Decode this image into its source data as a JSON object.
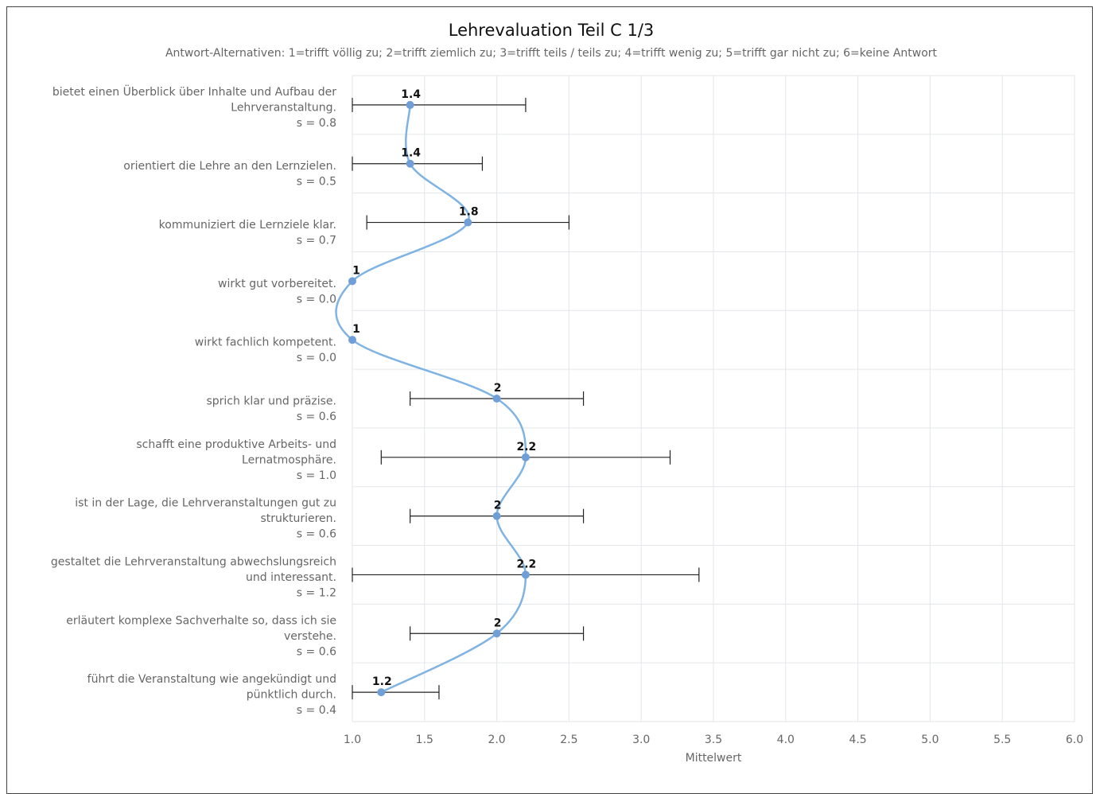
{
  "chart_data": {
    "type": "line",
    "title": "Lehrevaluation Teil C 1/3",
    "subtitle": "Antwort-Alternativen: 1=trifft völlig zu; 2=trifft ziemlich zu; 3=trifft teils / teils zu; 4=trifft wenig zu; 5=trifft gar nicht zu; 6=keine Antwort",
    "xlabel": "Mittelwert",
    "ylabel": "",
    "xlim": [
      1.0,
      6.0
    ],
    "x_ticks": [
      "1.0",
      "1.5",
      "2.0",
      "2.5",
      "3.0",
      "3.5",
      "4.0",
      "4.5",
      "5.0",
      "5.5",
      "6.0"
    ],
    "grid": true,
    "orientation": "horizontal",
    "items": [
      {
        "lines": [
          "bietet einen Überblick über Inhalte und Aufbau der",
          "Lehrveranstaltung.",
          "s = 0.8"
        ],
        "mean": 1.4,
        "s": 0.8,
        "label": "1.4"
      },
      {
        "lines": [
          "orientiert die Lehre an den Lernzielen.",
          "s = 0.5"
        ],
        "mean": 1.4,
        "s": 0.5,
        "label": "1.4"
      },
      {
        "lines": [
          "kommuniziert die Lernziele klar.",
          "s = 0.7"
        ],
        "mean": 1.8,
        "s": 0.7,
        "label": "1.8"
      },
      {
        "lines": [
          "wirkt gut vorbereitet.",
          "s = 0.0"
        ],
        "mean": 1.0,
        "s": 0.0,
        "label": "1"
      },
      {
        "lines": [
          "wirkt fachlich kompetent.",
          "s = 0.0"
        ],
        "mean": 1.0,
        "s": 0.0,
        "label": "1"
      },
      {
        "lines": [
          "sprich klar und präzise.",
          "s = 0.6"
        ],
        "mean": 2.0,
        "s": 0.6,
        "label": "2"
      },
      {
        "lines": [
          "schafft eine produktive Arbeits- und",
          "Lernatmosphäre.",
          "s = 1.0"
        ],
        "mean": 2.2,
        "s": 1.0,
        "label": "2.2"
      },
      {
        "lines": [
          "ist in der Lage, die Lehrveranstaltungen gut zu",
          "strukturieren.",
          "s = 0.6"
        ],
        "mean": 2.0,
        "s": 0.6,
        "label": "2"
      },
      {
        "lines": [
          "gestaltet die Lehrveranstaltung abwechslungsreich",
          "und interessant.",
          "s = 1.2"
        ],
        "mean": 2.2,
        "s": 1.2,
        "label": "2.2"
      },
      {
        "lines": [
          "erläutert komplexe Sachverhalte so, dass ich sie",
          "verstehe.",
          "s = 0.6"
        ],
        "mean": 2.0,
        "s": 0.6,
        "label": "2"
      },
      {
        "lines": [
          "führt die Veranstaltung wie angekündigt und",
          "pünktlich durch.",
          "s = 0.4"
        ],
        "mean": 1.2,
        "s": 0.4,
        "label": "1.2"
      }
    ],
    "colors": {
      "line": "#7fb3e3",
      "point": "#6f9fd6",
      "grid": "#e3e6ea",
      "errorbar": "#222222"
    }
  }
}
